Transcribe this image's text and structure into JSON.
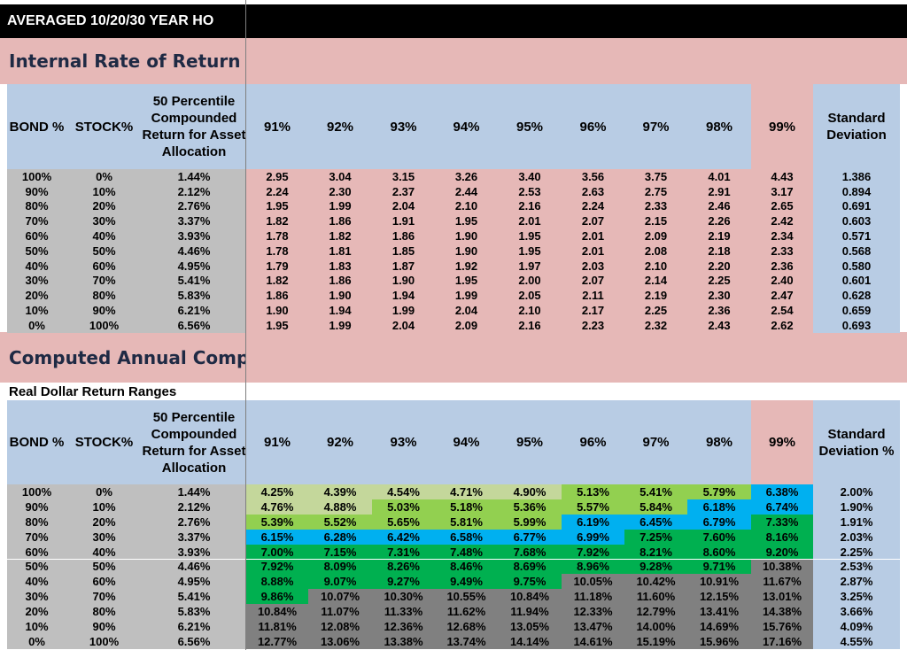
{
  "title": "AVERAGED 10/20/30 YEAR HO",
  "section1": {
    "heading": "Internal Rate of Return (",
    "columns": [
      "BOND %",
      "STOCK%",
      "50 Percentile Compounded Return for Asset Allocation",
      "91%",
      "92%",
      "93%",
      "94%",
      "95%",
      "96%",
      "97%",
      "98%",
      "99%",
      "Standard Deviation"
    ],
    "rows": [
      [
        "100%",
        "0%",
        "1.44%",
        "2.95",
        "3.04",
        "3.15",
        "3.26",
        "3.40",
        "3.56",
        "3.75",
        "4.01",
        "4.43",
        "1.386"
      ],
      [
        "90%",
        "10%",
        "2.12%",
        "2.24",
        "2.30",
        "2.37",
        "2.44",
        "2.53",
        "2.63",
        "2.75",
        "2.91",
        "3.17",
        "0.894"
      ],
      [
        "80%",
        "20%",
        "2.76%",
        "1.95",
        "1.99",
        "2.04",
        "2.10",
        "2.16",
        "2.24",
        "2.33",
        "2.46",
        "2.65",
        "0.691"
      ],
      [
        "70%",
        "30%",
        "3.37%",
        "1.82",
        "1.86",
        "1.91",
        "1.95",
        "2.01",
        "2.07",
        "2.15",
        "2.26",
        "2.42",
        "0.603"
      ],
      [
        "60%",
        "40%",
        "3.93%",
        "1.78",
        "1.82",
        "1.86",
        "1.90",
        "1.95",
        "2.01",
        "2.09",
        "2.19",
        "2.34",
        "0.571"
      ],
      [
        "50%",
        "50%",
        "4.46%",
        "1.78",
        "1.81",
        "1.85",
        "1.90",
        "1.95",
        "2.01",
        "2.08",
        "2.18",
        "2.33",
        "0.568"
      ],
      [
        "40%",
        "60%",
        "4.95%",
        "1.79",
        "1.83",
        "1.87",
        "1.92",
        "1.97",
        "2.03",
        "2.10",
        "2.20",
        "2.36",
        "0.580"
      ],
      [
        "30%",
        "70%",
        "5.41%",
        "1.82",
        "1.86",
        "1.90",
        "1.95",
        "2.00",
        "2.07",
        "2.14",
        "2.25",
        "2.40",
        "0.601"
      ],
      [
        "20%",
        "80%",
        "5.83%",
        "1.86",
        "1.90",
        "1.94",
        "1.99",
        "2.05",
        "2.11",
        "2.19",
        "2.30",
        "2.47",
        "0.628"
      ],
      [
        "10%",
        "90%",
        "6.21%",
        "1.90",
        "1.94",
        "1.99",
        "2.04",
        "2.10",
        "2.17",
        "2.25",
        "2.36",
        "2.54",
        "0.659"
      ],
      [
        "0%",
        "100%",
        "6.56%",
        "1.95",
        "1.99",
        "2.04",
        "2.09",
        "2.16",
        "2.23",
        "2.32",
        "2.43",
        "2.62",
        "0.693"
      ]
    ]
  },
  "section2": {
    "heading": "Computed Annual Compo",
    "subheading": "Real Dollar Return Ranges",
    "columns": [
      "BOND %",
      "STOCK%",
      "50 Percentile Compounded Return for Asset Allocation",
      "91%",
      "92%",
      "93%",
      "94%",
      "95%",
      "96%",
      "97%",
      "98%",
      "99%",
      "Standard Deviation %"
    ],
    "rows": [
      [
        "100%",
        "0%",
        "1.44%",
        "4.25%",
        "4.39%",
        "4.54%",
        "4.71%",
        "4.90%",
        "5.13%",
        "5.41%",
        "5.79%",
        "6.38%",
        "2.00%"
      ],
      [
        "90%",
        "10%",
        "2.12%",
        "4.76%",
        "4.88%",
        "5.03%",
        "5.18%",
        "5.36%",
        "5.57%",
        "5.84%",
        "6.18%",
        "6.74%",
        "1.90%"
      ],
      [
        "80%",
        "20%",
        "2.76%",
        "5.39%",
        "5.52%",
        "5.65%",
        "5.81%",
        "5.99%",
        "6.19%",
        "6.45%",
        "6.79%",
        "7.33%",
        "1.91%"
      ],
      [
        "70%",
        "30%",
        "3.37%",
        "6.15%",
        "6.28%",
        "6.42%",
        "6.58%",
        "6.77%",
        "6.99%",
        "7.25%",
        "7.60%",
        "8.16%",
        "2.03%"
      ],
      [
        "60%",
        "40%",
        "3.93%",
        "7.00%",
        "7.15%",
        "7.31%",
        "7.48%",
        "7.68%",
        "7.92%",
        "8.21%",
        "8.60%",
        "9.20%",
        "2.25%"
      ],
      [
        "50%",
        "50%",
        "4.46%",
        "7.92%",
        "8.09%",
        "8.26%",
        "8.46%",
        "8.69%",
        "8.96%",
        "9.28%",
        "9.71%",
        "10.38%",
        "2.53%"
      ],
      [
        "40%",
        "60%",
        "4.95%",
        "8.88%",
        "9.07%",
        "9.27%",
        "9.49%",
        "9.75%",
        "10.05%",
        "10.42%",
        "10.91%",
        "11.67%",
        "2.87%"
      ],
      [
        "30%",
        "70%",
        "5.41%",
        "9.86%",
        "10.07%",
        "10.30%",
        "10.55%",
        "10.84%",
        "11.18%",
        "11.60%",
        "12.15%",
        "13.01%",
        "3.25%"
      ],
      [
        "20%",
        "80%",
        "5.83%",
        "10.84%",
        "11.07%",
        "11.33%",
        "11.62%",
        "11.94%",
        "12.33%",
        "12.79%",
        "13.41%",
        "14.38%",
        "3.66%"
      ],
      [
        "10%",
        "90%",
        "6.21%",
        "11.81%",
        "12.08%",
        "12.36%",
        "12.68%",
        "13.05%",
        "13.47%",
        "14.00%",
        "14.69%",
        "15.76%",
        "4.09%"
      ],
      [
        "0%",
        "100%",
        "6.56%",
        "12.77%",
        "13.06%",
        "13.38%",
        "13.74%",
        "14.14%",
        "14.61%",
        "15.19%",
        "15.96%",
        "17.16%",
        "4.55%"
      ]
    ],
    "cell_colors": [
      [
        "#c4d79b",
        "#c4d79b",
        "#c4d79b",
        "#c4d79b",
        "#c4d79b",
        "#92d050",
        "#92d050",
        "#92d050",
        "#00b0f0"
      ],
      [
        "#c4d79b",
        "#c4d79b",
        "#92d050",
        "#92d050",
        "#92d050",
        "#92d050",
        "#92d050",
        "#00b0f0",
        "#00b0f0"
      ],
      [
        "#92d050",
        "#92d050",
        "#92d050",
        "#92d050",
        "#92d050",
        "#00b0f0",
        "#00b0f0",
        "#00b0f0",
        "#00b050"
      ],
      [
        "#00b0f0",
        "#00b0f0",
        "#00b0f0",
        "#00b0f0",
        "#00b0f0",
        "#00b0f0",
        "#00b050",
        "#00b050",
        "#00b050"
      ],
      [
        "#00b050",
        "#00b050",
        "#00b050",
        "#00b050",
        "#00b050",
        "#00b050",
        "#00b050",
        "#00b050",
        "#00b050"
      ],
      [
        "#00b050",
        "#00b050",
        "#00b050",
        "#00b050",
        "#00b050",
        "#00b050",
        "#00b050",
        "#00b050",
        "#808080"
      ],
      [
        "#00b050",
        "#00b050",
        "#00b050",
        "#00b050",
        "#00b050",
        "#808080",
        "#808080",
        "#808080",
        "#808080"
      ],
      [
        "#00b050",
        "#808080",
        "#808080",
        "#808080",
        "#808080",
        "#808080",
        "#808080",
        "#808080",
        "#808080"
      ],
      [
        "#808080",
        "#808080",
        "#808080",
        "#808080",
        "#808080",
        "#808080",
        "#808080",
        "#808080",
        "#808080"
      ],
      [
        "#808080",
        "#808080",
        "#808080",
        "#808080",
        "#808080",
        "#808080",
        "#808080",
        "#808080",
        "#808080"
      ],
      [
        "#808080",
        "#808080",
        "#808080",
        "#808080",
        "#808080",
        "#808080",
        "#808080",
        "#808080",
        "#808080"
      ]
    ]
  }
}
